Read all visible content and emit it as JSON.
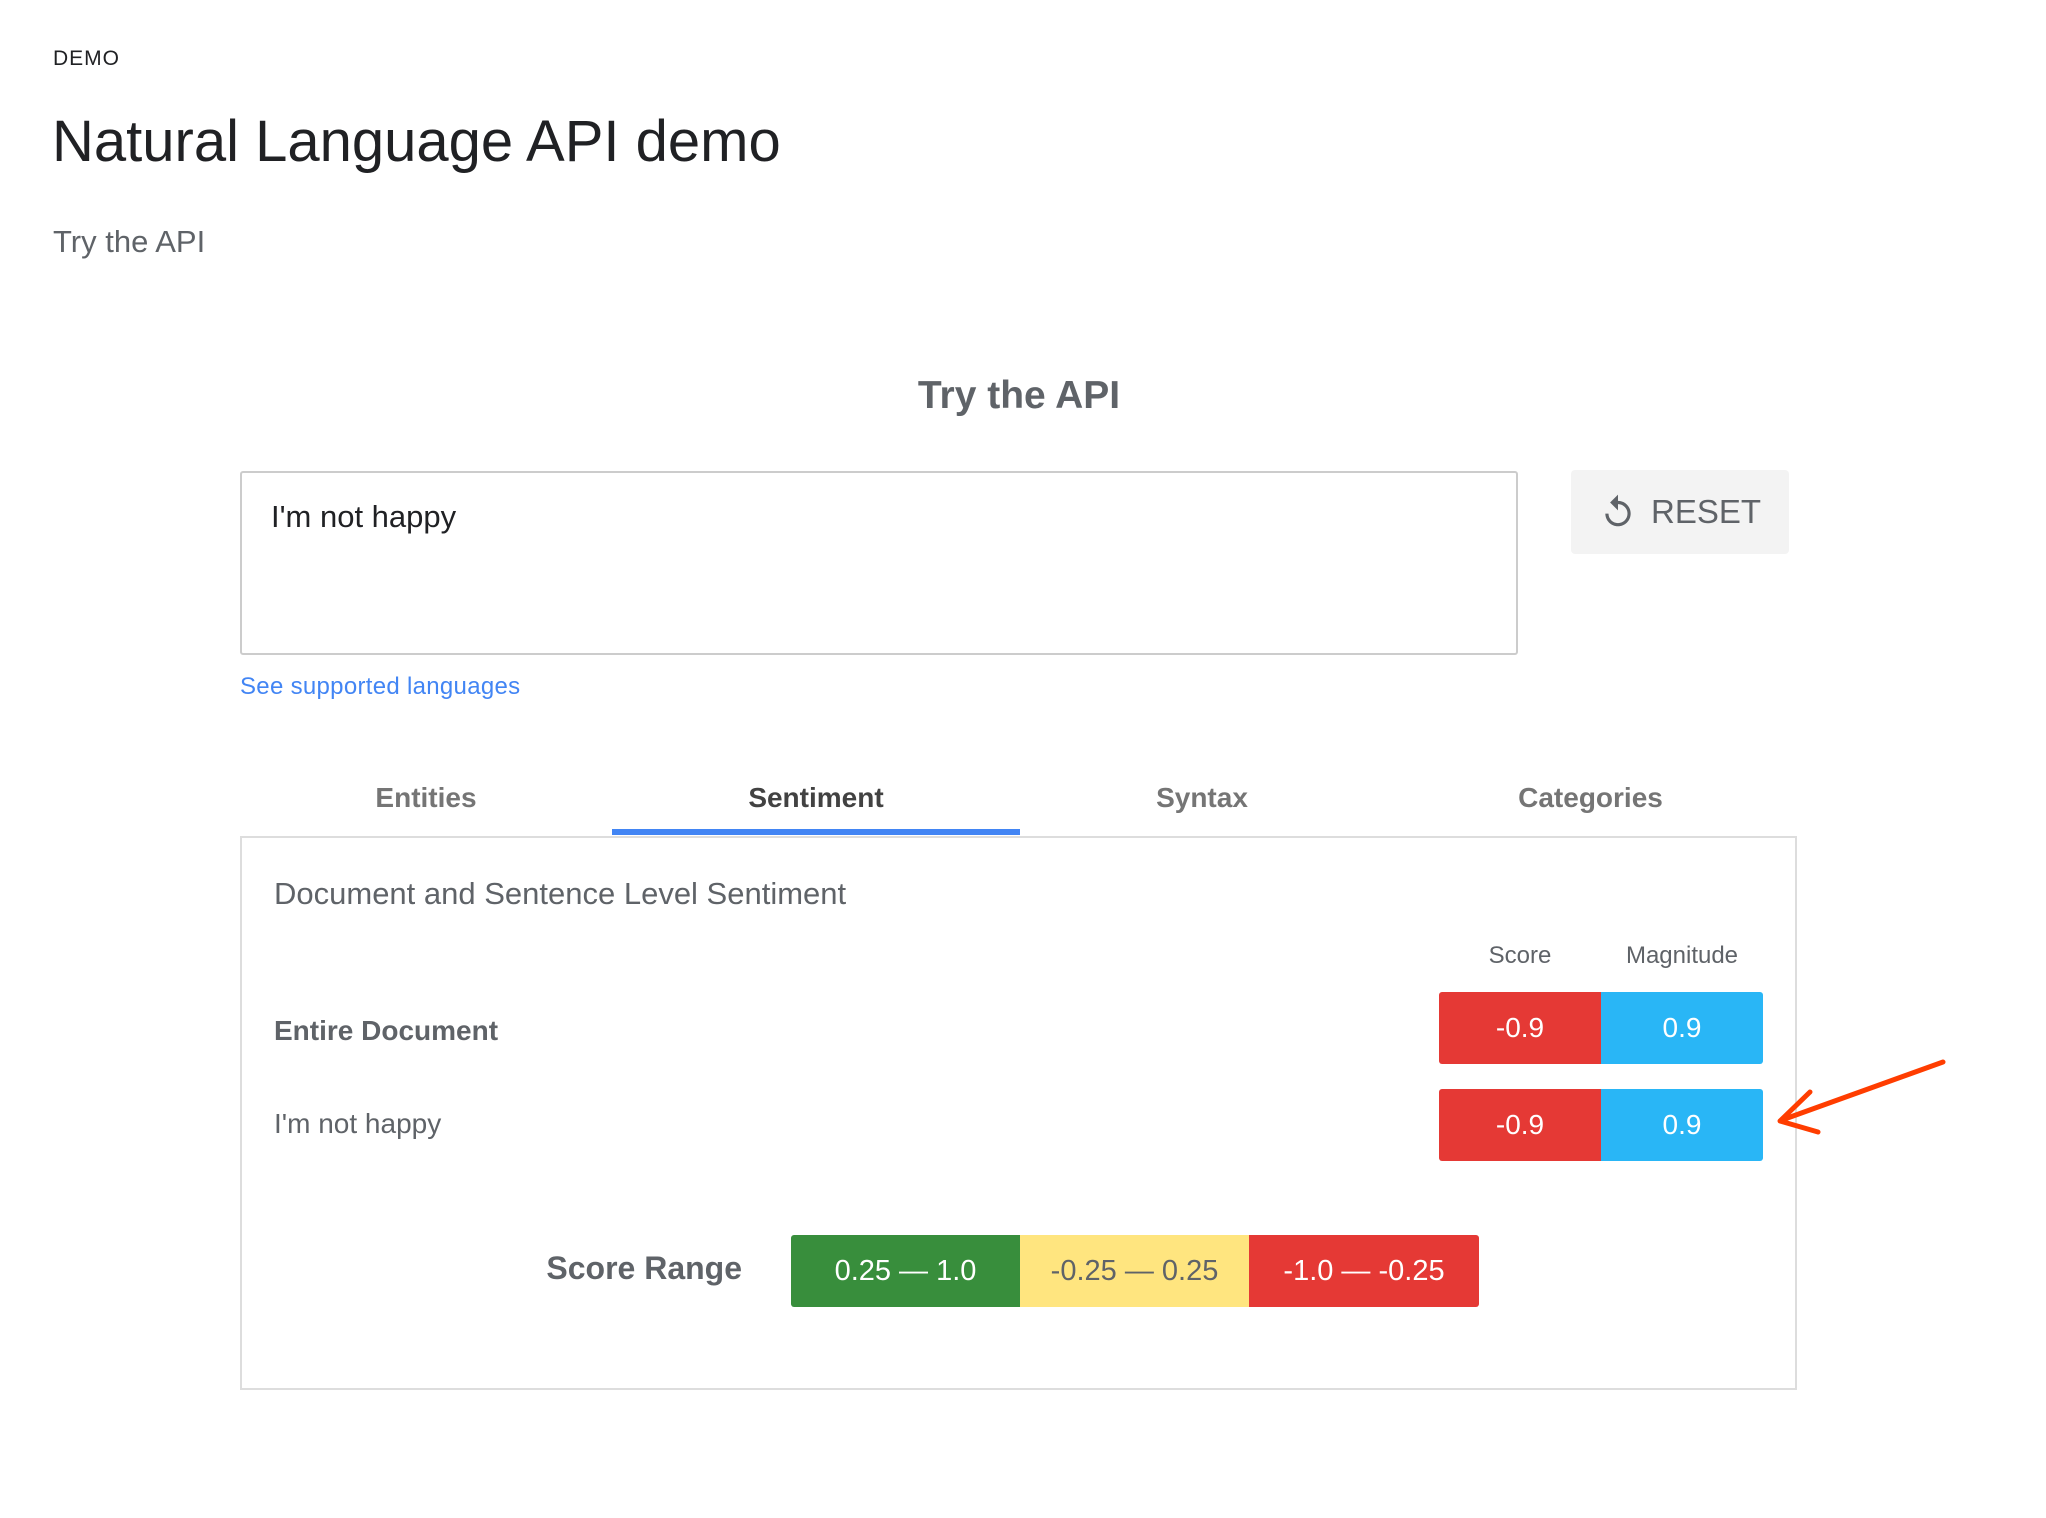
{
  "header": {
    "eyebrow": "DEMO",
    "title": "Natural Language API demo",
    "subtitle": "Try the API"
  },
  "demo": {
    "section_title": "Try the API",
    "input_value": "I'm not happy",
    "reset_label": "RESET",
    "reset_icon": "reset-icon",
    "languages_link": "See supported languages"
  },
  "tabs": [
    {
      "label": "Entities",
      "active": false
    },
    {
      "label": "Sentiment",
      "active": true
    },
    {
      "label": "Syntax",
      "active": false
    },
    {
      "label": "Categories",
      "active": false
    }
  ],
  "sentiment": {
    "heading": "Document and Sentence Level Sentiment",
    "columns": {
      "score": "Score",
      "magnitude": "Magnitude"
    },
    "rows": [
      {
        "label": "Entire Document",
        "score": "-0.9",
        "magnitude": "0.9"
      },
      {
        "label": "I'm not happy",
        "score": "-0.9",
        "magnitude": "0.9"
      }
    ],
    "score_range": {
      "label": "Score Range",
      "ranges": [
        {
          "label": "0.25 — 1.0",
          "color": "#388e3c"
        },
        {
          "label": "-0.25 — 0.25",
          "color": "#ffe57f"
        },
        {
          "label": "-1.0 — -0.25",
          "color": "#e53935"
        }
      ]
    }
  },
  "colors": {
    "negative": "#e53935",
    "magnitude": "#29b6f6",
    "accent": "#4285f4",
    "annotation_arrow": "#ff3d00"
  }
}
